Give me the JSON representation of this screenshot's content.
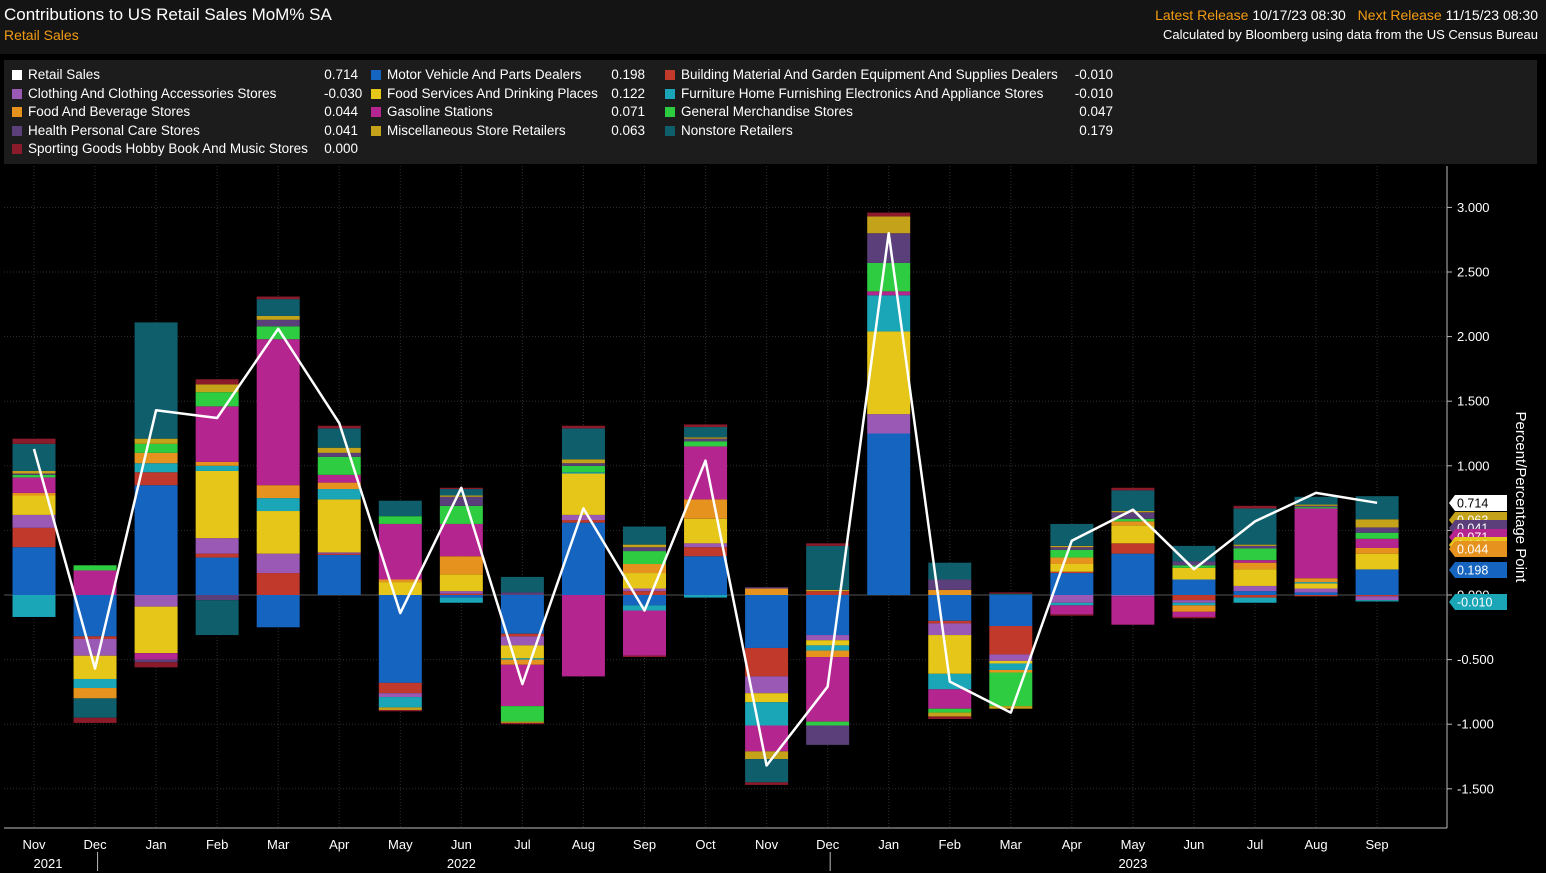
{
  "header": {
    "title": "Contributions to US Retail Sales MoM% SA",
    "subtitle": "Retail Sales",
    "latest_release_label": "Latest Release",
    "latest_release_value": "10/17/23 08:30",
    "next_release_label": "Next Release",
    "next_release_value": "11/15/23 08:30",
    "source": "Calculated by Bloomberg using data from the US Census Bureau"
  },
  "colors": {
    "retail": "#ffffff",
    "motor": "#1565c0",
    "building": "#c0392b",
    "clothing": "#9b59b6",
    "food_services": "#e6c619",
    "furniture": "#1ba6b8",
    "food_bev": "#e6921e",
    "gasoline": "#b5258f",
    "general": "#2ecc40",
    "health": "#5b3f7a",
    "misc": "#c4a21a",
    "nonstore": "#0f5e6b",
    "sporting": "#8b1a2b"
  },
  "legend": [
    {
      "key": "retail",
      "label": "Retail Sales",
      "value": "0.714"
    },
    {
      "key": "clothing",
      "label": "Clothing And Clothing Accessories Stores",
      "value": "-0.030"
    },
    {
      "key": "food_bev",
      "label": "Food And Beverage Stores",
      "value": "0.044"
    },
    {
      "key": "health",
      "label": "Health Personal Care Stores",
      "value": "0.041"
    },
    {
      "key": "sporting",
      "label": "Sporting Goods Hobby Book And Music Stores",
      "value": "0.000"
    },
    {
      "key": "motor",
      "label": "Motor Vehicle And Parts Dealers",
      "value": "0.198"
    },
    {
      "key": "food_services",
      "label": "Food Services And Drinking Places",
      "value": "0.122"
    },
    {
      "key": "gasoline",
      "label": "Gasoline Stations",
      "value": "0.071"
    },
    {
      "key": "misc",
      "label": "Miscellaneous Store Retailers",
      "value": "0.063"
    },
    {
      "key": "building",
      "label": "Building Material And Garden Equipment And Supplies Dealers",
      "value": "-0.010"
    },
    {
      "key": "furniture",
      "label": "Furniture Home Furnishing Electronics And Appliance Stores",
      "value": "-0.010"
    },
    {
      "key": "general",
      "label": "General Merchandise Stores",
      "value": "0.047"
    },
    {
      "key": "nonstore",
      "label": "Nonstore Retailers",
      "value": "0.179"
    }
  ],
  "chart_data": {
    "type": "bar",
    "stacked": true,
    "ylabel": "Percent/Percentage Point",
    "ylim": [
      -1.8,
      3.3
    ],
    "yticks": [
      "3.000",
      "2.500",
      "2.000",
      "1.500",
      "1.000",
      "0.500",
      "0.000",
      "-0.500",
      "-1.000",
      "-1.500"
    ],
    "categories": [
      "Nov",
      "Dec",
      "Jan",
      "Feb",
      "Mar",
      "Apr",
      "May",
      "Jun",
      "Jul",
      "Aug",
      "Sep",
      "Oct",
      "Nov",
      "Dec",
      "Jan",
      "Feb",
      "Mar",
      "Apr",
      "May",
      "Jun",
      "Jul",
      "Aug",
      "Sep"
    ],
    "years": [
      {
        "label": "2021",
        "index": 0
      },
      {
        "label": "2022",
        "index": 7
      },
      {
        "label": "2023",
        "index": 18
      }
    ],
    "stack_order": [
      "motor",
      "building",
      "clothing",
      "food_services",
      "furniture",
      "food_bev",
      "gasoline",
      "general",
      "health",
      "misc",
      "nonstore",
      "sporting"
    ],
    "line": {
      "name": "Retail Sales",
      "values": [
        1.13,
        -0.57,
        1.43,
        1.37,
        2.06,
        1.33,
        -0.14,
        0.83,
        -0.69,
        0.67,
        -0.12,
        1.04,
        -1.32,
        -0.71,
        2.8,
        -0.67,
        -0.91,
        0.42,
        0.66,
        0.2,
        0.57,
        0.79,
        0.714
      ]
    },
    "series": [
      {
        "key": "motor",
        "values": [
          0.37,
          -0.32,
          0.85,
          0.29,
          -0.25,
          0.31,
          -0.68,
          -0.02,
          -0.3,
          0.56,
          -0.08,
          0.3,
          -0.41,
          -0.31,
          1.25,
          -0.2,
          -0.24,
          0.17,
          0.32,
          0.12,
          0.03,
          0.02,
          0.198
        ]
      },
      {
        "key": "building",
        "values": [
          0.15,
          -0.02,
          0.1,
          0.03,
          0.17,
          0.01,
          -0.08,
          0.01,
          -0.02,
          0.02,
          0.03,
          0.07,
          -0.22,
          0.03,
          0.0,
          -0.02,
          -0.22,
          0.01,
          0.08,
          -0.04,
          -0.02,
          -0.01,
          -0.01
        ]
      },
      {
        "key": "clothing",
        "values": [
          0.1,
          -0.13,
          -0.09,
          0.12,
          0.15,
          0.01,
          -0.03,
          0.02,
          -0.07,
          0.04,
          0.02,
          0.03,
          -0.13,
          -0.04,
          0.15,
          -0.09,
          -0.05,
          -0.06,
          -0.01,
          -0.02,
          0.04,
          0.03,
          -0.03
        ]
      },
      {
        "key": "food_services",
        "values": [
          0.15,
          -0.18,
          -0.36,
          0.52,
          0.33,
          0.41,
          0.1,
          0.13,
          -0.1,
          0.32,
          0.12,
          0.19,
          -0.07,
          -0.04,
          0.64,
          -0.3,
          -0.02,
          0.06,
          0.14,
          0.09,
          0.13,
          0.04,
          0.122
        ]
      },
      {
        "key": "furniture",
        "values": [
          -0.17,
          -0.07,
          0.07,
          0.04,
          0.1,
          0.08,
          -0.08,
          -0.04,
          -0.01,
          0.01,
          -0.04,
          -0.02,
          -0.18,
          -0.04,
          0.28,
          -0.12,
          -0.05,
          -0.02,
          0.0,
          -0.02,
          -0.04,
          0.01,
          -0.01
        ]
      },
      {
        "key": "food_bev",
        "values": [
          0.02,
          -0.08,
          0.08,
          0.03,
          0.1,
          0.05,
          0.02,
          0.14,
          -0.04,
          0.0,
          0.07,
          0.15,
          0.05,
          -0.05,
          0.0,
          0.04,
          -0.02,
          0.05,
          0.03,
          -0.05,
          0.05,
          0.03,
          0.044
        ]
      },
      {
        "key": "gasoline",
        "values": [
          0.12,
          0.19,
          -0.05,
          0.43,
          1.13,
          0.06,
          0.43,
          0.25,
          -0.32,
          -0.63,
          -0.35,
          0.41,
          -0.2,
          -0.5,
          0.03,
          -0.15,
          0.0,
          -0.07,
          -0.22,
          -0.04,
          0.02,
          0.54,
          0.071
        ]
      },
      {
        "key": "general",
        "values": [
          0.02,
          0.04,
          0.07,
          0.11,
          0.1,
          0.14,
          0.06,
          0.14,
          -0.12,
          0.05,
          0.1,
          0.04,
          0.0,
          -0.03,
          0.22,
          -0.03,
          -0.26,
          0.06,
          0.02,
          0.02,
          0.09,
          0.01,
          0.047
        ]
      },
      {
        "key": "health",
        "values": [
          0.01,
          0.0,
          -0.02,
          -0.04,
          0.05,
          0.03,
          0.0,
          0.07,
          0.02,
          0.02,
          0.03,
          0.02,
          0.01,
          -0.15,
          0.23,
          0.08,
          0.0,
          0.02,
          0.05,
          0.03,
          0.02,
          0.01,
          0.041
        ]
      },
      {
        "key": "misc",
        "values": [
          0.02,
          0.0,
          0.04,
          0.06,
          0.03,
          0.04,
          -0.02,
          0.01,
          -0.01,
          0.03,
          0.02,
          0.01,
          -0.06,
          0.01,
          0.13,
          -0.03,
          -0.02,
          0.01,
          0.01,
          0.0,
          0.01,
          0.01,
          0.063
        ]
      },
      {
        "key": "nonstore",
        "values": [
          0.21,
          -0.15,
          0.9,
          -0.27,
          0.13,
          0.15,
          0.12,
          0.05,
          0.12,
          0.24,
          0.14,
          0.08,
          -0.18,
          0.34,
          0.0,
          0.13,
          0.01,
          0.17,
          0.16,
          0.12,
          0.28,
          0.06,
          0.179
        ]
      },
      {
        "key": "sporting",
        "values": [
          0.04,
          -0.04,
          -0.04,
          0.04,
          0.02,
          0.02,
          -0.01,
          0.01,
          -0.01,
          0.02,
          -0.01,
          0.02,
          -0.02,
          0.02,
          0.03,
          -0.02,
          0.01,
          -0.01,
          0.02,
          -0.01,
          0.02,
          0.0,
          0.0
        ]
      }
    ],
    "right_labels": [
      {
        "key": "retail",
        "value": "0.714"
      },
      {
        "key": "misc",
        "value": "0.063"
      },
      {
        "key": "health",
        "value": "0.041"
      },
      {
        "key": "gasoline",
        "value": "0.071"
      },
      {
        "key": "food_services",
        "value": "0.122"
      },
      {
        "key": "food_bev",
        "value": "0.044"
      },
      {
        "key": "motor",
        "value": "0.198"
      },
      {
        "key": "furniture",
        "value": "-0.010"
      }
    ]
  }
}
